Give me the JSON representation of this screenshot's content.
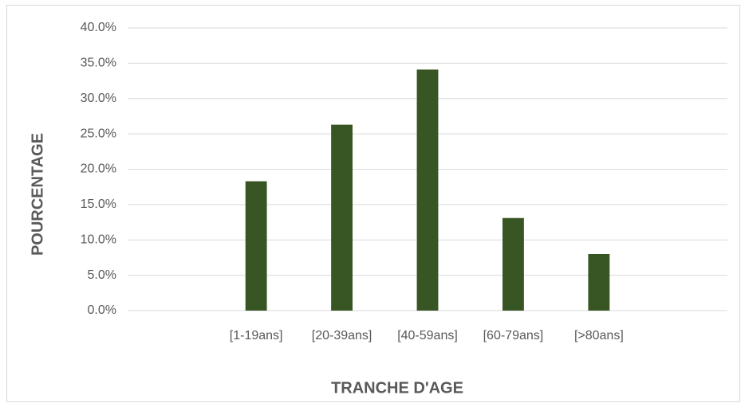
{
  "chart_data": {
    "type": "bar",
    "x_label": "TRANCHE D'AGE",
    "y_label": "POURCENTAGE",
    "categories": [
      null,
      "[1-19ans]",
      "[20-39ans]",
      "[40-59ans]",
      "[60-79ans]",
      "[>80ans]",
      null
    ],
    "values": [
      null,
      18.3,
      26.3,
      34.1,
      13.1,
      8.0,
      null
    ],
    "color": "#375623",
    "ylim": [
      0,
      40
    ],
    "yticks": [
      {
        "value": 0,
        "label": "0.0%"
      },
      {
        "value": 5,
        "label": "5.0%"
      },
      {
        "value": 10,
        "label": "10.0%"
      },
      {
        "value": 15,
        "label": "15.0%"
      },
      {
        "value": 20,
        "label": "20.0%"
      },
      {
        "value": 25,
        "label": "25.0%"
      },
      {
        "value": 30,
        "label": "30.0%"
      },
      {
        "value": 35,
        "label": "35.0%"
      },
      {
        "value": 40,
        "label": "40.0%"
      }
    ],
    "grid": true
  }
}
